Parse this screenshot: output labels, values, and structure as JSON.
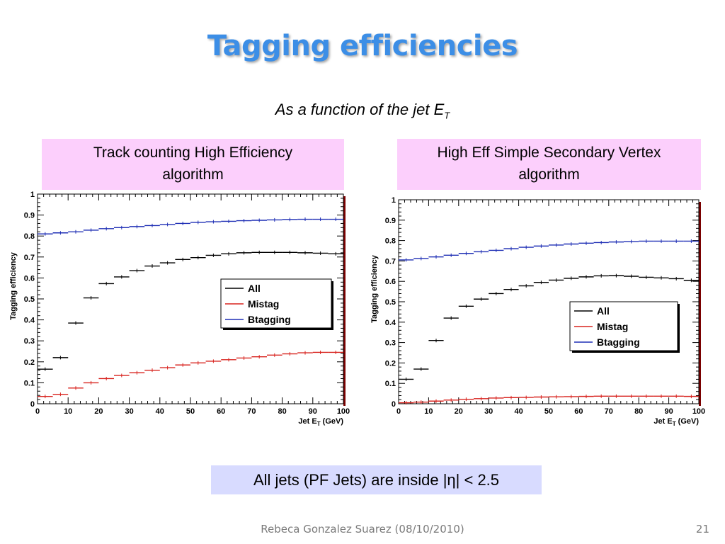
{
  "slide": {
    "title": "Tagging efficiencies",
    "subtitle": "As a function of the jet E",
    "subtitle_sub": "T",
    "note": "All jets (PF Jets) are inside |η| < 2.5",
    "footer": "Rebeca Gonzalez Suarez  (08/10/2010)",
    "page_number": "21"
  },
  "panels": [
    {
      "label_line1": "Track counting High Efficiency",
      "label_line2": "algorithm"
    },
    {
      "label_line1": "High Eff Simple Secondary Vertex",
      "label_line2": "algorithm"
    }
  ],
  "colors": {
    "all": "#000000",
    "mistag": "#d8231e",
    "btagging": "#1f2fb5",
    "panel_bg": "#fccffc",
    "note_bg": "#d8dbff",
    "title": "#3c8ee6"
  },
  "chart_data": [
    {
      "type": "line",
      "ylabel": "Tagging efficiency",
      "xlabel": "Jet E",
      "xlabel_sub": "T",
      "xlabel_unit": "(GeV)",
      "xlim": [
        0,
        100
      ],
      "ylim": [
        0,
        1
      ],
      "xticks": [
        "0",
        "10",
        "20",
        "30",
        "40",
        "50",
        "60",
        "70",
        "80",
        "90",
        "100"
      ],
      "yticks": [
        "0",
        "0.1",
        "0.2",
        "0.3",
        "0.4",
        "0.5",
        "0.6",
        "0.7",
        "0.8",
        "0.9",
        "1"
      ],
      "legend_position": "middle-right",
      "x": [
        2.5,
        7.5,
        12.5,
        17.5,
        22.5,
        27.5,
        32.5,
        37.5,
        42.5,
        47.5,
        52.5,
        57.5,
        62.5,
        67.5,
        72.5,
        77.5,
        82.5,
        87.5,
        92.5,
        97.5
      ],
      "series": [
        {
          "name": "All",
          "color_key": "all",
          "values": [
            0.165,
            0.22,
            0.385,
            0.505,
            0.573,
            0.605,
            0.635,
            0.657,
            0.672,
            0.688,
            0.697,
            0.708,
            0.715,
            0.72,
            0.722,
            0.722,
            0.722,
            0.72,
            0.718,
            0.715
          ]
        },
        {
          "name": "Mistag",
          "color_key": "mistag",
          "values": [
            0.035,
            0.045,
            0.075,
            0.1,
            0.12,
            0.135,
            0.148,
            0.16,
            0.172,
            0.185,
            0.195,
            0.203,
            0.21,
            0.218,
            0.224,
            0.232,
            0.238,
            0.243,
            0.245,
            0.245
          ]
        },
        {
          "name": "Btagging",
          "color_key": "btagging",
          "values": [
            0.81,
            0.815,
            0.82,
            0.828,
            0.835,
            0.84,
            0.845,
            0.85,
            0.855,
            0.86,
            0.865,
            0.868,
            0.87,
            0.873,
            0.875,
            0.877,
            0.879,
            0.88,
            0.88,
            0.88
          ]
        }
      ]
    },
    {
      "type": "line",
      "ylabel": "Tagging efficiency",
      "xlabel": "Jet E",
      "xlabel_sub": "T",
      "xlabel_unit": "(GeV)",
      "xlim": [
        0,
        100
      ],
      "ylim": [
        0,
        1
      ],
      "xticks": [
        "0",
        "10",
        "20",
        "30",
        "40",
        "50",
        "60",
        "70",
        "80",
        "90",
        "100"
      ],
      "yticks": [
        "0",
        "0.1",
        "0.2",
        "0.3",
        "0.4",
        "0.5",
        "0.6",
        "0.7",
        "0.8",
        "0.9",
        "1"
      ],
      "legend_position": "middle-right",
      "x": [
        2.5,
        7.5,
        12.5,
        17.5,
        22.5,
        27.5,
        32.5,
        37.5,
        42.5,
        47.5,
        52.5,
        57.5,
        62.5,
        67.5,
        72.5,
        77.5,
        82.5,
        87.5,
        92.5,
        97.5
      ],
      "series": [
        {
          "name": "All",
          "color_key": "all",
          "values": [
            0.12,
            0.17,
            0.31,
            0.42,
            0.478,
            0.513,
            0.54,
            0.56,
            0.578,
            0.595,
            0.606,
            0.615,
            0.622,
            0.627,
            0.628,
            0.625,
            0.62,
            0.617,
            0.613,
            0.605
          ]
        },
        {
          "name": "Mistag",
          "color_key": "mistag",
          "values": [
            0.005,
            0.008,
            0.013,
            0.018,
            0.022,
            0.025,
            0.028,
            0.03,
            0.031,
            0.033,
            0.034,
            0.035,
            0.036,
            0.037,
            0.037,
            0.037,
            0.037,
            0.037,
            0.037,
            0.036
          ]
        },
        {
          "name": "Btagging",
          "color_key": "btagging",
          "values": [
            0.705,
            0.712,
            0.72,
            0.728,
            0.737,
            0.745,
            0.752,
            0.76,
            0.767,
            0.773,
            0.778,
            0.783,
            0.787,
            0.79,
            0.793,
            0.795,
            0.797,
            0.797,
            0.797,
            0.797
          ]
        }
      ]
    }
  ]
}
